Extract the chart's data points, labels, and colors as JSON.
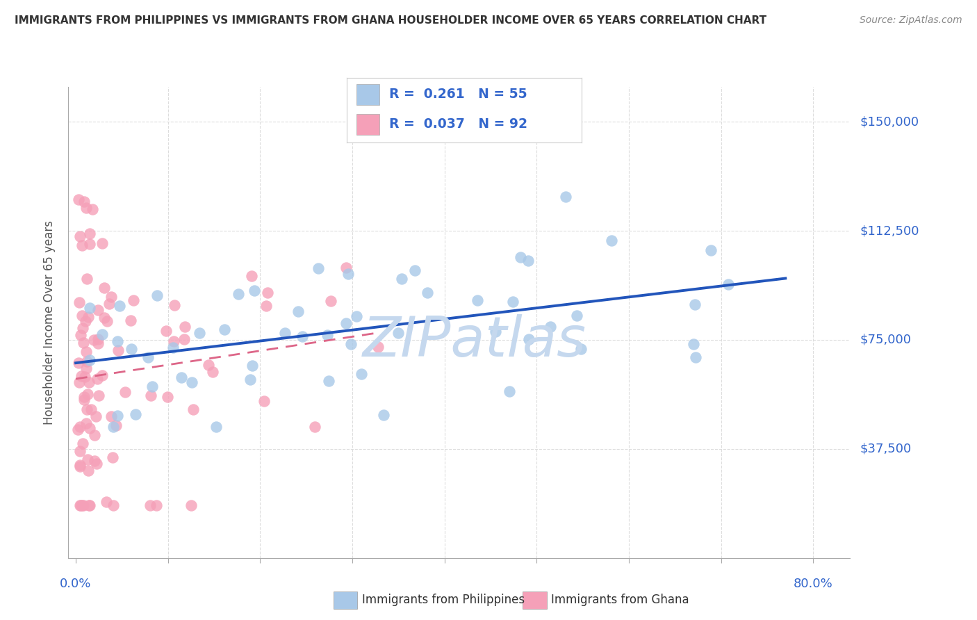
{
  "title": "IMMIGRANTS FROM PHILIPPINES VS IMMIGRANTS FROM GHANA HOUSEHOLDER INCOME OVER 65 YEARS CORRELATION CHART",
  "source": "Source: ZipAtlas.com",
  "ylabel": "Householder Income Over 65 years",
  "ytick_labels": [
    "$37,500",
    "$75,000",
    "$112,500",
    "$150,000"
  ],
  "ytick_values": [
    37500,
    75000,
    112500,
    150000
  ],
  "ylim": [
    0,
    162000
  ],
  "xlim": [
    -0.008,
    0.84
  ],
  "philippines_R": 0.261,
  "philippines_N": 55,
  "ghana_R": 0.037,
  "ghana_N": 92,
  "philippines_color": "#a8c8e8",
  "ghana_color": "#f5a0b8",
  "philippines_line_color": "#2255bb",
  "ghana_line_color": "#dd6688",
  "watermark": "ZIPatlas",
  "watermark_color": "#c5d8ee",
  "title_color": "#333333",
  "axis_label_color": "#3366cc",
  "background_color": "#ffffff",
  "grid_color": "#dddddd",
  "legend_border_color": "#cccccc"
}
